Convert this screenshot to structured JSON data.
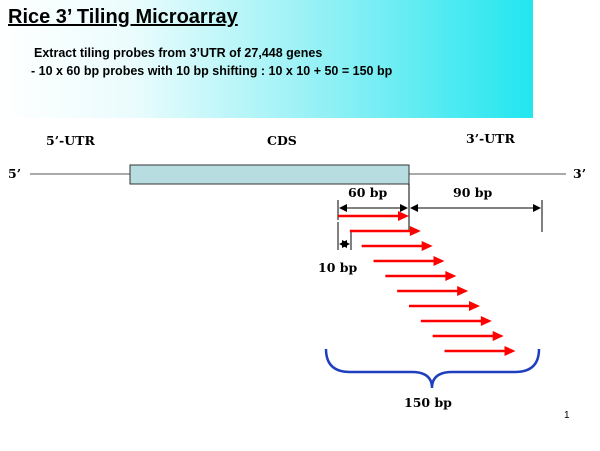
{
  "slide": {
    "title": "Rice 3’ Tiling Microarray",
    "line1": "Extract tiling probes from 3’UTR of 27,448 genes",
    "line2": "- 10 x 60 bp probes with 10 bp shifting : 10 x 10 + 50 = 150 bp",
    "page_number": "1"
  },
  "diagram": {
    "labels": {
      "utr5": "5’-UTR",
      "cds": "CDS",
      "utr3": "3’-UTR",
      "end5": "5’",
      "end3": "3’",
      "bp60": "60 bp",
      "bp90": "90 bp",
      "bp10": "10 bp",
      "bp150": "150 bp"
    },
    "colors": {
      "cds_box": "#b7dde0",
      "probe_arrow": "#ff0000",
      "brace": "#1f3fbf"
    },
    "probe_count": 10,
    "probe_length_bp": 60,
    "probe_shift_bp": 10
  }
}
